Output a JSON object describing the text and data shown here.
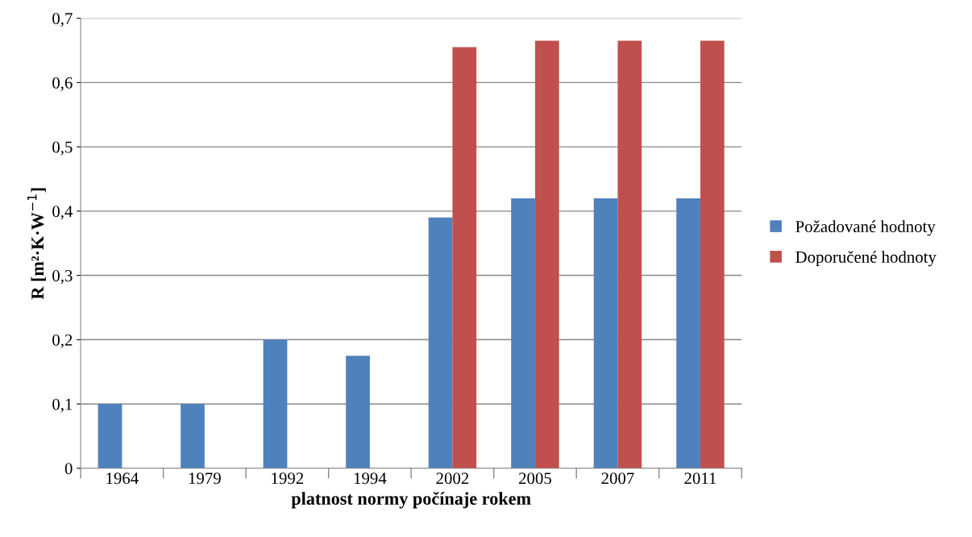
{
  "chart_data": {
    "type": "bar",
    "xlabel": "platnost normy počínaje rokem",
    "ylabel": "R [m²·K·W$^{−1}$]",
    "categories": [
      "1964",
      "1979",
      "1992",
      "1994",
      "2002",
      "2005",
      "2007",
      "2011"
    ],
    "series": [
      {
        "name": "Požadované hodnoty",
        "color": "#4f81bd",
        "values": [
          0.1,
          0.1,
          0.2,
          0.175,
          0.39,
          0.42,
          0.42,
          0.42
        ]
      },
      {
        "name": "Doporučené hodnoty",
        "color": "#c0504d",
        "values": [
          null,
          null,
          null,
          null,
          0.655,
          0.665,
          0.665,
          0.665
        ]
      }
    ],
    "ylim": [
      0,
      0.7
    ],
    "yticks": [
      {
        "value": 0,
        "label": "0"
      },
      {
        "value": 0.1,
        "label": "0,1"
      },
      {
        "value": 0.2,
        "label": "0,2"
      },
      {
        "value": 0.3,
        "label": "0,3"
      },
      {
        "value": 0.4,
        "label": "0,4"
      },
      {
        "value": 0.5,
        "label": "0,5"
      },
      {
        "value": 0.6,
        "label": "0,6"
      },
      {
        "value": 0.7,
        "label": "0,7"
      }
    ],
    "grid": "y",
    "legend": "right"
  }
}
